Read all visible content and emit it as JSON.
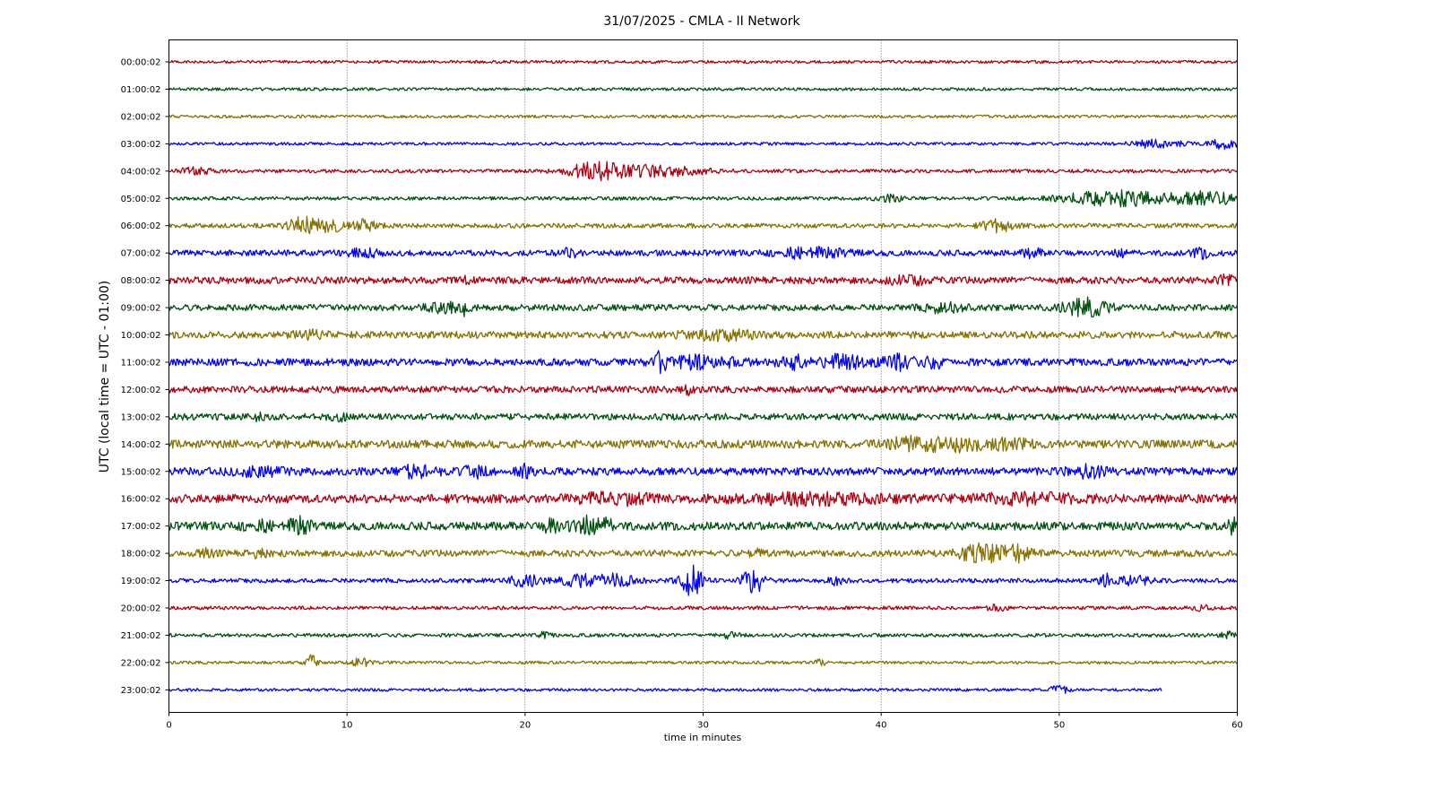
{
  "chart_data": {
    "type": "line",
    "title": "31/07/2025 - CMLA - II Network",
    "xlabel": "time in minutes",
    "ylabel": "UTC (local time = UTC - 01:00)",
    "xlim": [
      0,
      60
    ],
    "xticks": [
      0,
      10,
      20,
      30,
      40,
      50,
      60
    ],
    "grid": "vertical dotted",
    "colors": [
      "#b00010",
      "#00500e",
      "#857000",
      "#0000ff"
    ],
    "series": [
      {
        "label": "00:00:02",
        "end": 60,
        "noise": 1.0,
        "events": []
      },
      {
        "label": "01:00:02",
        "end": 60,
        "noise": 1.0,
        "events": []
      },
      {
        "label": "02:00:02",
        "end": 60,
        "noise": 1.0,
        "events": []
      },
      {
        "label": "03:00:02",
        "end": 60,
        "noise": 1.0,
        "events": [
          {
            "t": 55.5,
            "amp": 2.5,
            "width": 1.5
          },
          {
            "t": 59.3,
            "amp": 3.5,
            "width": 0.8
          }
        ]
      },
      {
        "label": "04:00:02",
        "end": 60,
        "noise": 1.2,
        "events": [
          {
            "t": 1.5,
            "amp": 2.0,
            "width": 1.0
          },
          {
            "t": 24.0,
            "amp": 6.0,
            "width": 1.5
          },
          {
            "t": 27.5,
            "amp": 3.5,
            "width": 2.5
          }
        ]
      },
      {
        "label": "05:00:02",
        "end": 60,
        "noise": 1.2,
        "events": [
          {
            "t": 40.5,
            "amp": 2.0,
            "width": 0.8
          },
          {
            "t": 53.5,
            "amp": 5.0,
            "width": 3.5
          },
          {
            "t": 58.5,
            "amp": 4.0,
            "width": 1.5
          }
        ]
      },
      {
        "label": "06:00:02",
        "end": 60,
        "noise": 1.6,
        "events": [
          {
            "t": 7.5,
            "amp": 5.0,
            "width": 0.8
          },
          {
            "t": 9.0,
            "amp": 3.5,
            "width": 1.0
          },
          {
            "t": 11.0,
            "amp": 3.5,
            "width": 0.8
          },
          {
            "t": 46.5,
            "amp": 4.0,
            "width": 0.8
          }
        ]
      },
      {
        "label": "07:00:02",
        "end": 60,
        "noise": 2.0,
        "events": [
          {
            "t": 11.0,
            "amp": 2.0,
            "width": 1.0
          },
          {
            "t": 22.5,
            "amp": 2.5,
            "width": 0.5
          },
          {
            "t": 36.0,
            "amp": 3.0,
            "width": 2.0
          },
          {
            "t": 48.5,
            "amp": 2.5,
            "width": 0.5
          },
          {
            "t": 53.5,
            "amp": 3.0,
            "width": 0.3
          },
          {
            "t": 58.0,
            "amp": 2.5,
            "width": 0.5
          }
        ]
      },
      {
        "label": "08:00:02",
        "end": 60,
        "noise": 2.4,
        "events": [
          {
            "t": 16.7,
            "amp": 3.0,
            "width": 0.2
          },
          {
            "t": 41.5,
            "amp": 2.5,
            "width": 1.0
          },
          {
            "t": 59.5,
            "amp": 3.5,
            "width": 0.5
          }
        ]
      },
      {
        "label": "09:00:02",
        "end": 60,
        "noise": 2.2,
        "events": [
          {
            "t": 15.5,
            "amp": 2.5,
            "width": 1.0
          },
          {
            "t": 16.7,
            "amp": 7.0,
            "width": 0.2
          },
          {
            "t": 43.5,
            "amp": 3.0,
            "width": 1.0
          },
          {
            "t": 51.5,
            "amp": 5.5,
            "width": 1.2
          }
        ]
      },
      {
        "label": "10:00:02",
        "end": 60,
        "noise": 2.4,
        "events": [
          {
            "t": 8.0,
            "amp": 2.0,
            "width": 1.0
          },
          {
            "t": 31.0,
            "amp": 2.5,
            "width": 2.0
          }
        ]
      },
      {
        "label": "11:00:02",
        "end": 60,
        "noise": 2.5,
        "events": [
          {
            "t": 27.6,
            "amp": 6.0,
            "width": 0.3
          },
          {
            "t": 30.0,
            "amp": 3.5,
            "width": 2.0
          },
          {
            "t": 35.0,
            "amp": 4.0,
            "width": 0.8
          },
          {
            "t": 37.8,
            "amp": 4.5,
            "width": 1.0
          },
          {
            "t": 40.8,
            "amp": 4.5,
            "width": 1.0
          },
          {
            "t": 43.0,
            "amp": 3.0,
            "width": 0.5
          }
        ]
      },
      {
        "label": "12:00:02",
        "end": 60,
        "noise": 2.3,
        "events": [
          {
            "t": 29.2,
            "amp": 2.5,
            "width": 0.4
          }
        ]
      },
      {
        "label": "13:00:02",
        "end": 60,
        "noise": 2.3,
        "events": [
          {
            "t": 5.0,
            "amp": 2.0,
            "width": 0.3
          },
          {
            "t": 9.5,
            "amp": 2.0,
            "width": 0.5
          }
        ]
      },
      {
        "label": "14:00:02",
        "end": 60,
        "noise": 2.8,
        "events": [
          {
            "t": 42.0,
            "amp": 4.5,
            "width": 1.5
          },
          {
            "t": 44.5,
            "amp": 3.5,
            "width": 1.0
          },
          {
            "t": 47.0,
            "amp": 2.5,
            "width": 1.5
          }
        ]
      },
      {
        "label": "15:00:02",
        "end": 60,
        "noise": 2.7,
        "events": [
          {
            "t": 5.0,
            "amp": 2.0,
            "width": 1.5
          },
          {
            "t": 14.0,
            "amp": 3.5,
            "width": 1.0
          },
          {
            "t": 17.2,
            "amp": 3.5,
            "width": 0.6
          },
          {
            "t": 20.0,
            "amp": 4.0,
            "width": 0.5
          },
          {
            "t": 51.5,
            "amp": 3.5,
            "width": 1.0
          }
        ]
      },
      {
        "label": "16:00:02",
        "end": 60,
        "noise": 3.0,
        "events": [
          {
            "t": 25.0,
            "amp": 3.0,
            "width": 2.0
          },
          {
            "t": 36.0,
            "amp": 2.5,
            "width": 4.0
          },
          {
            "t": 48.0,
            "amp": 2.5,
            "width": 3.0
          }
        ]
      },
      {
        "label": "17:00:02",
        "end": 60,
        "noise": 2.8,
        "events": [
          {
            "t": 5.0,
            "amp": 2.5,
            "width": 1.0
          },
          {
            "t": 7.3,
            "amp": 5.0,
            "width": 0.6
          },
          {
            "t": 21.5,
            "amp": 5.0,
            "width": 0.4
          },
          {
            "t": 23.8,
            "amp": 5.5,
            "width": 1.2
          },
          {
            "t": 59.7,
            "amp": 5.0,
            "width": 0.3
          }
        ]
      },
      {
        "label": "18:00:02",
        "end": 60,
        "noise": 2.3,
        "events": [
          {
            "t": 2.0,
            "amp": 2.0,
            "width": 0.5
          },
          {
            "t": 5.0,
            "amp": 1.8,
            "width": 0.5
          },
          {
            "t": 45.5,
            "amp": 5.0,
            "width": 1.2
          },
          {
            "t": 47.5,
            "amp": 5.0,
            "width": 1.0
          },
          {
            "t": 33.0,
            "amp": 3.0,
            "width": 0.4
          }
        ]
      },
      {
        "label": "19:00:02",
        "end": 60,
        "noise": 1.5,
        "events": [
          {
            "t": 20.0,
            "amp": 3.5,
            "width": 1.0
          },
          {
            "t": 23.0,
            "amp": 3.5,
            "width": 1.0
          },
          {
            "t": 25.0,
            "amp": 4.0,
            "width": 1.2
          },
          {
            "t": 29.3,
            "amp": 12.0,
            "width": 0.6
          },
          {
            "t": 32.8,
            "amp": 9.0,
            "width": 0.6
          },
          {
            "t": 37.5,
            "amp": 2.5,
            "width": 0.5
          },
          {
            "t": 52.5,
            "amp": 5.0,
            "width": 0.3
          },
          {
            "t": 54.0,
            "amp": 3.5,
            "width": 1.0
          }
        ]
      },
      {
        "label": "20:00:02",
        "end": 60,
        "noise": 1.2,
        "events": [
          {
            "t": 46.5,
            "amp": 1.8,
            "width": 0.5
          },
          {
            "t": 58.0,
            "amp": 1.5,
            "width": 0.5
          }
        ]
      },
      {
        "label": "21:00:02",
        "end": 60,
        "noise": 1.2,
        "events": [
          {
            "t": 21.0,
            "amp": 1.5,
            "width": 0.5
          },
          {
            "t": 31.5,
            "amp": 1.8,
            "width": 0.5
          },
          {
            "t": 59.5,
            "amp": 2.0,
            "width": 0.5
          }
        ]
      },
      {
        "label": "22:00:02",
        "end": 60,
        "noise": 1.0,
        "events": [
          {
            "t": 8.0,
            "amp": 5.0,
            "width": 0.3
          },
          {
            "t": 10.8,
            "amp": 3.0,
            "width": 0.5
          },
          {
            "t": 36.6,
            "amp": 2.0,
            "width": 0.3
          }
        ]
      },
      {
        "label": "23:00:02",
        "end": 55.8,
        "noise": 1.0,
        "events": [
          {
            "t": 50.0,
            "amp": 2.5,
            "width": 0.5
          }
        ]
      }
    ]
  }
}
